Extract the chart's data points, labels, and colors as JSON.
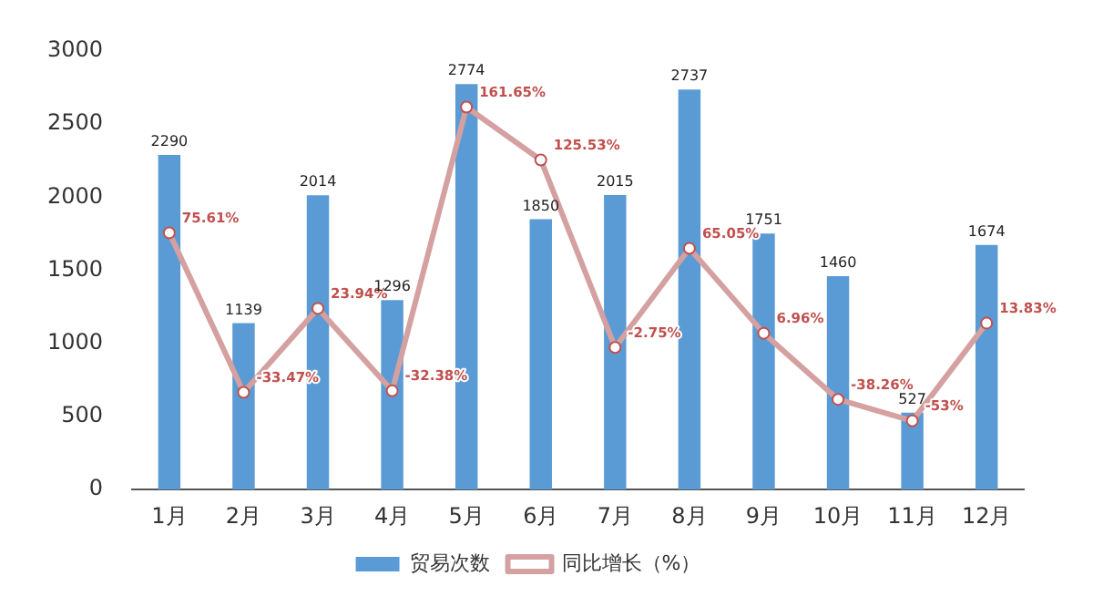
{
  "chart_data": {
    "type": "bar",
    "categories": [
      "1月",
      "2月",
      "3月",
      "4月",
      "5月",
      "6月",
      "7月",
      "8月",
      "9月",
      "10月",
      "11月",
      "12月"
    ],
    "series": [
      {
        "name": "贸易次数",
        "color": "#5b9bd5",
        "values": [
          2290,
          1139,
          2014,
          1296,
          2774,
          1850,
          2015,
          2737,
          1751,
          1460,
          527,
          1674
        ],
        "value_labels": [
          "2290",
          "1139",
          "2014",
          "1296",
          "2774",
          "1850",
          "2015",
          "2737",
          "1751",
          "1460",
          "527",
          "1674"
        ]
      },
      {
        "name": "同比增长（%）",
        "type": "line",
        "axis": "y2",
        "color": "#d4a0a0",
        "marker": "circle",
        "values": [
          75.61,
          -33.47,
          23.94,
          -32.38,
          161.65,
          125.53,
          -2.75,
          65.05,
          6.96,
          -38.26,
          -53,
          13.83
        ],
        "value_labels": [
          "75.61%",
          "-33.47%",
          "23.94%",
          "-32.38%",
          "161.65%",
          "125.53%",
          "-2.75%",
          "65.05%",
          "6.96%",
          "-38.26%",
          "-53%",
          "13.83%"
        ]
      }
    ],
    "ylim": [
      0,
      3000
    ],
    "yticks": [
      0,
      500,
      1000,
      1500,
      2000,
      2500,
      3000
    ],
    "grid": false,
    "legend": "bottom"
  }
}
